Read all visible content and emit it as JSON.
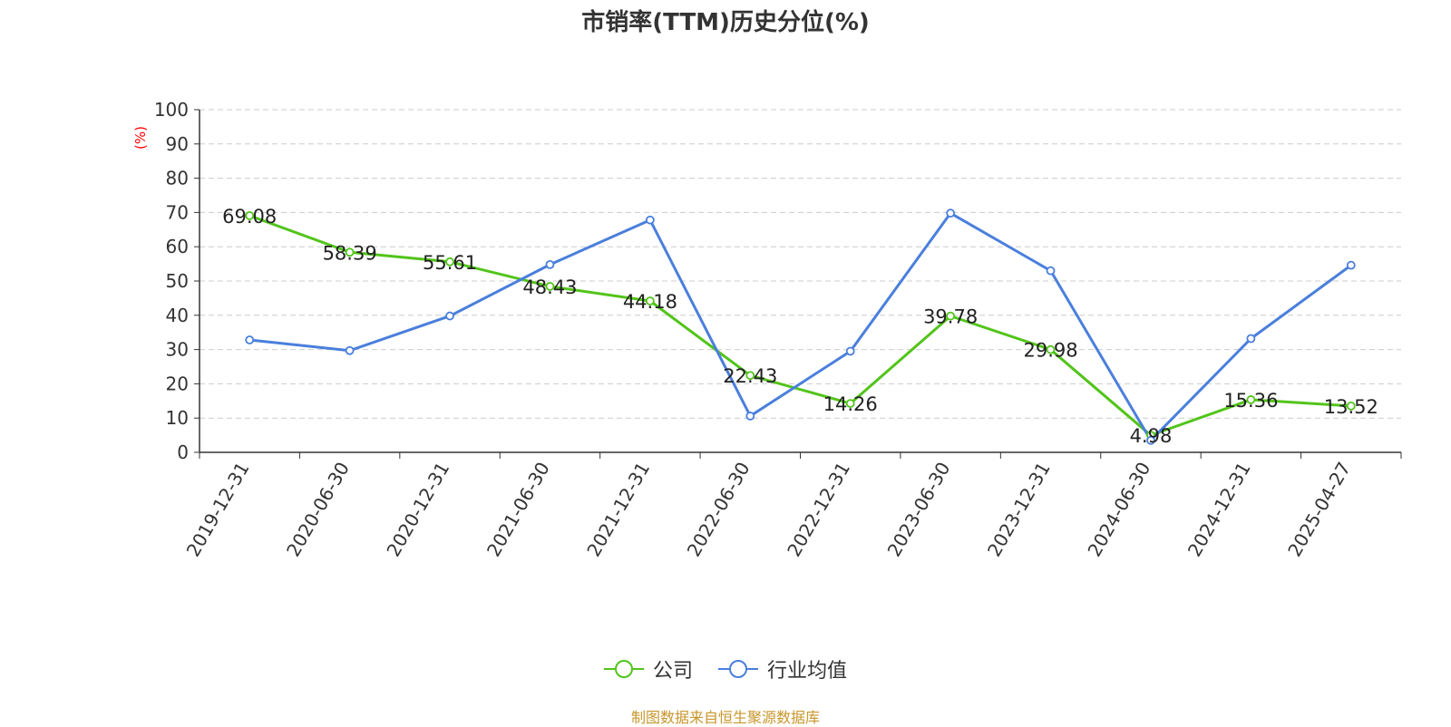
{
  "chart_data": {
    "type": "line",
    "title": "市销率(TTM)历史分位(%)",
    "ylabel": "(%)",
    "ylim": [
      0,
      100
    ],
    "yticks": [
      0,
      10,
      20,
      30,
      40,
      50,
      60,
      70,
      80,
      90,
      100
    ],
    "categories": [
      "2019-12-31",
      "2020-06-30",
      "2020-12-31",
      "2021-06-30",
      "2021-12-31",
      "2022-06-30",
      "2022-12-31",
      "2023-06-30",
      "2023-12-31",
      "2024-06-30",
      "2024-12-31",
      "2025-04-27"
    ],
    "grid": true,
    "legend_position": "bottom",
    "series": [
      {
        "name": "公司",
        "color": "#52c41a",
        "values": [
          69.08,
          58.39,
          55.61,
          48.43,
          44.18,
          22.43,
          14.26,
          39.78,
          29.98,
          4.98,
          15.36,
          13.52
        ],
        "labels": [
          "69.08",
          "58.39",
          "55.61",
          "48.43",
          "44.18",
          "22.43",
          "14.26",
          "39.78",
          "29.98",
          "4.98",
          "15.36",
          "13.52"
        ]
      },
      {
        "name": "行业均值",
        "color": "#4a7fdc",
        "values": [
          32.8,
          29.7,
          39.8,
          54.8,
          67.8,
          10.6,
          29.5,
          69.8,
          53.0,
          3.5,
          33.2,
          54.6
        ]
      }
    ]
  },
  "source": "制图数据来自恒生聚源数据库"
}
